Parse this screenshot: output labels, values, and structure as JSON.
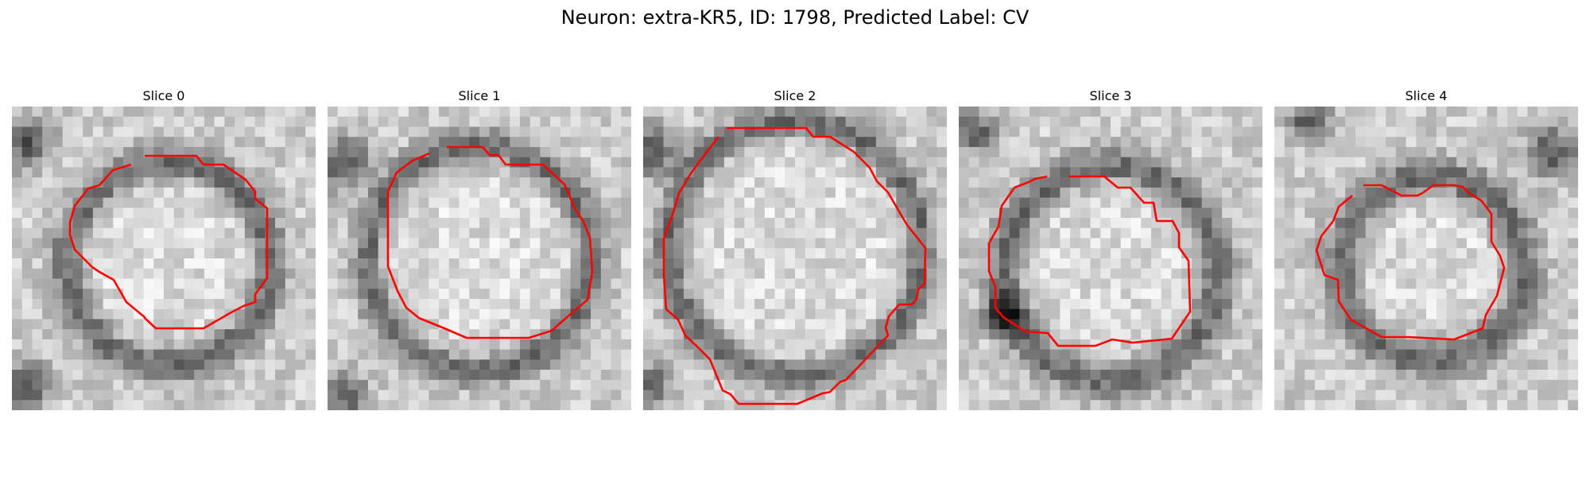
{
  "title": "Neuron: extra-KR5, ID: 1798, Predicted Label: CV",
  "overlay_color": "#ff0000",
  "panels": [
    {
      "label": "Slice 0"
    },
    {
      "label": "Slice 1"
    },
    {
      "label": "Slice 2"
    },
    {
      "label": "Slice 3"
    },
    {
      "label": "Slice 4"
    }
  ]
}
